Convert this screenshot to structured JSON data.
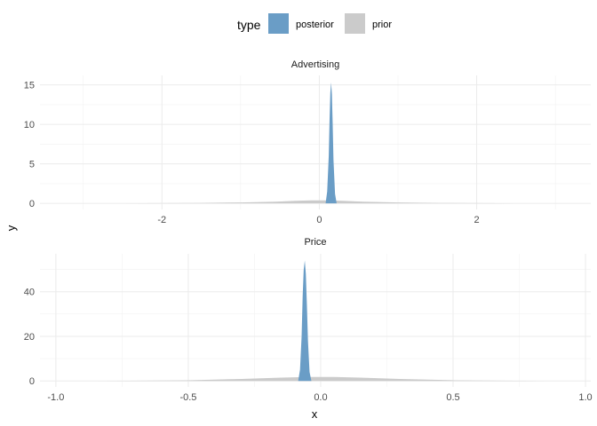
{
  "legend": {
    "title": "type",
    "position": "top",
    "entries": [
      {
        "label": "posterior",
        "color": "#6A9DC6"
      },
      {
        "label": "prior",
        "color": "#CBCBCB"
      }
    ]
  },
  "axis_labels": {
    "x": "x",
    "y": "y"
  },
  "chart_data": [
    {
      "type": "area",
      "facet": "Advertising",
      "xlim": [
        -3.55,
        3.45
      ],
      "ylim": [
        -0.77,
        16.2
      ],
      "x_ticks": [
        -2,
        0,
        2
      ],
      "x_tick_labels": [
        "-2",
        "0",
        "2"
      ],
      "y_ticks": [
        0,
        5,
        10,
        15
      ],
      "y_tick_labels": [
        "0",
        "5",
        "10",
        "15"
      ],
      "grid": true,
      "series": [
        {
          "name": "prior",
          "color": "#CBCBCB",
          "x": [
            -2.55,
            -1.55,
            -1.0,
            -0.55,
            -0.3,
            -0.1,
            0.1,
            0.3,
            0.55,
            1.0,
            1.55,
            2.55
          ],
          "y": [
            0.0,
            0.05,
            0.12,
            0.22,
            0.32,
            0.38,
            0.38,
            0.32,
            0.22,
            0.12,
            0.05,
            0.0
          ]
        },
        {
          "name": "posterior",
          "color": "#6A9DC6",
          "x": [
            0.08,
            0.1,
            0.12,
            0.13,
            0.14,
            0.15,
            0.16,
            0.17,
            0.18,
            0.2,
            0.22
          ],
          "y": [
            0.0,
            1.5,
            6.0,
            10.5,
            14.0,
            15.3,
            13.8,
            10.0,
            5.5,
            1.2,
            0.0
          ]
        }
      ]
    },
    {
      "type": "area",
      "facet": "Price",
      "xlim": [
        -1.06,
        1.02
      ],
      "ylim": [
        -2.7,
        57.0
      ],
      "x_ticks": [
        -1.0,
        -0.5,
        0.0,
        0.5,
        1.0
      ],
      "x_tick_labels": [
        "-1.0",
        "-0.5",
        "0.0",
        "0.5",
        "1.0"
      ],
      "y_ticks": [
        0,
        20,
        40
      ],
      "y_tick_labels": [
        "0",
        "20",
        "40"
      ],
      "grid": true,
      "series": [
        {
          "name": "prior",
          "color": "#CBCBCB",
          "x": [
            -0.85,
            -0.5,
            -0.3,
            -0.15,
            -0.05,
            0.05,
            0.15,
            0.3,
            0.5,
            0.85
          ],
          "y": [
            0.0,
            0.3,
            0.9,
            1.5,
            1.8,
            1.8,
            1.5,
            0.9,
            0.3,
            0.0
          ]
        },
        {
          "name": "posterior",
          "color": "#6A9DC6",
          "x": [
            -0.085,
            -0.078,
            -0.072,
            -0.068,
            -0.064,
            -0.06,
            -0.056,
            -0.052,
            -0.048,
            -0.042,
            -0.035
          ],
          "y": [
            0.0,
            5.0,
            20.0,
            38.0,
            50.0,
            54.0,
            48.0,
            34.0,
            18.0,
            4.0,
            0.0
          ]
        }
      ]
    }
  ]
}
